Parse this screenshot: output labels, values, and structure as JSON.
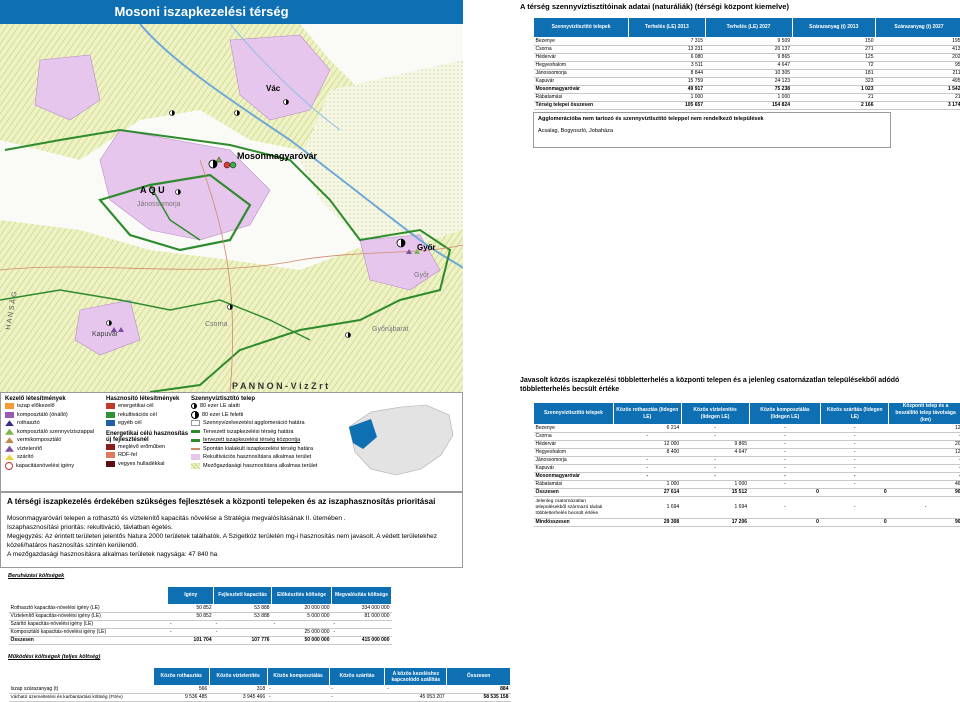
{
  "map": {
    "title": "Mosoni iszapkezelési térség",
    "places": {
      "vac": "Vác",
      "mosonmagyarovar": "Mosonmagyaróvár",
      "janossomorja": "Jánossomorja",
      "gyor": "Győr",
      "gyor2": "Győr",
      "kapuvar": "Kapuvár",
      "csorna": "Csorna",
      "gyorujbarat": "Győrújbarát",
      "hansag": "H A N S Á G",
      "pannon": "P A N N O N - V i z   Z r t",
      "aq": "A    Q    U"
    }
  },
  "legend": {
    "col1_title": "Kezelő létesítmények",
    "col1": [
      "iszap előkezelő",
      "komposztáló (önálló)",
      "rothasztó",
      "komposztáló szennyvíziszappal",
      "vermikomposztáló",
      "víztelenítő",
      "szárító",
      "kapacitásnövelési igény"
    ],
    "col2_title": "Hasznosító létesítmények",
    "col2": [
      "energetikai cél",
      "rekultivációs cél",
      "egyéb cél"
    ],
    "col2b_title": "Energetikai célú hasznosítás",
    "col2b_sub": "új fejlesztésnél",
    "col2b": [
      "meglévő erőműben",
      "RDF-fel",
      "vegyes hulladékkal"
    ],
    "col3_title": "Szennyvíztisztító telep",
    "col3": [
      "80 ezer LE alatti",
      "80 ezer LE feletti",
      "Szennyvízelvezetési agglomeráció határa",
      "Tervezett iszapkezelési térség határa",
      "tervezett iszapkezelési térség központja",
      "Spontán kialakult iszapkezelési térség határa",
      "Rekultivációs hasznosításra alkalmas terület",
      "Mezőgazdasági hasznosításra alkalmas terület"
    ]
  },
  "colors": {
    "brand_blue": "#0f6fb3",
    "green_boundary": "#2e8b2e",
    "pink_zone": "#e6c6ec",
    "hatch_green": "#d5e09a"
  },
  "text_box": {
    "heading": "A térségi iszapkezelés érdekében szükséges fejlesztések a központi telepeken és az iszaphasznosítás prioritásai",
    "lines": [
      "Mosonmagyaróvári telepen a rothasztó és víztelenítő kapacitás növelése a Stratégia megvalósításának II. ütemében .",
      "Iszaphasznosítási prioritás: rekultiváció, távlatban égetés.",
      "Megjegyzés: Az érintett területen jelentős Natura 2000 területek találhatók. A Szigetköz területén mg-i hasznosítás nem javasolt. A védett területekhez",
      "közeli/határos hasznosítás szintén kerülendő.",
      "A mezőgazdasági hasznosításra alkalmas területek nagysága: 47 840 ha"
    ]
  },
  "t1": {
    "title": "A térség szennyvíztisztítóinak adatai (naturáliák) (térségi központ kiemelve)",
    "headers": [
      "Szennyvíztisztító telepek",
      "Terhelés (LE) 2013",
      "Terhelés (LE) 2027",
      "Szárazanyag (t) 2013",
      "Szárazanyag (t) 2027"
    ],
    "rows": [
      [
        "Bezenye",
        "7 315",
        "9 509",
        "150",
        "195"
      ],
      [
        "Csorna",
        "13 231",
        "20 137",
        "271",
        "413"
      ],
      [
        "Hédervár",
        "6 080",
        "9 865",
        "125",
        "202"
      ],
      [
        "Hegyeshalom",
        "3 511",
        "4 647",
        "72",
        "95"
      ],
      [
        "Jánossomorja",
        "8 844",
        "10 305",
        "181",
        "211"
      ],
      [
        "Kapuvár",
        "15 759",
        "24 123",
        "323",
        "495"
      ],
      [
        "Mosonmagyaróvár",
        "49 917",
        "75 238",
        "1 023",
        "1 542"
      ],
      [
        "Rábatamási",
        "1 000",
        "1 000",
        "21",
        "21"
      ],
      [
        "Térség telepei összesen",
        "105 657",
        "154 824",
        "2 166",
        "3 174"
      ]
    ]
  },
  "agglo": {
    "title": "Agglomerációba nem tartozó és szennyvíztisztító teleppel nem rendelkező települések",
    "text": "Acsalag, Bogyoszló, Jobaháza"
  },
  "t2": {
    "title": "Javasolt közös iszapkezelési többletterhelés a központi telepen és a jelenleg csatornázatlan településekből adódó többletterhelés becsült értéke",
    "headers": [
      "Szennyvíztisztító telepek",
      "Közös rothasztás (lidegen LE)",
      "Közös víztelenítés (lidegen LE)",
      "Közös komposztálás (lidegen LE)",
      "Közös szárítás (lidegen LE)",
      "Központi telep és a beszállító telep távolsága (km)"
    ],
    "rows": [
      [
        "Bezenye",
        "6 214",
        "-",
        "-",
        "-",
        "12"
      ],
      [
        "Csorna",
        "-",
        "-",
        "-",
        "-",
        "-"
      ],
      [
        "Hédervár",
        "12 000",
        "9 865",
        "-",
        "-",
        "20"
      ],
      [
        "Hegyeshalom",
        "8 400",
        "4 647",
        "-",
        "-",
        "12"
      ],
      [
        "Jánossomorja",
        "-",
        "-",
        "-",
        "-",
        "-"
      ],
      [
        "Kapuvár",
        "-",
        "-",
        "-",
        "-",
        "-"
      ],
      [
        "Mosonmagyaróvár",
        "-",
        "-",
        "-",
        "-",
        "-"
      ],
      [
        "Rábatamási",
        "1 000",
        "1 000",
        "-",
        "-",
        "46"
      ],
      [
        "Összesen",
        "27 614",
        "15 512",
        "0",
        "0",
        "90"
      ]
    ],
    "extra_label": "Jelenleg csatornázatlan településekből származó távlati többletterhelés becsült értéke",
    "extra": [
      "1 694",
      "1 694",
      "-",
      "-",
      "-"
    ],
    "total": [
      "Mindösszesen",
      "29 308",
      "17 206",
      "0",
      "0",
      "90"
    ]
  },
  "t3": {
    "caption": "Beruházási költségek",
    "headers": [
      "",
      "Igény",
      "Fejlesztett kapacitás",
      "Előkészítés költsége",
      "Megvalósítás költsége"
    ],
    "rows": [
      [
        "Rothasztó kapacitás-növelési igény (LE)",
        "50 852",
        "53 888",
        "20 000 000",
        "334 000 000"
      ],
      [
        "Víztelenítő kapacitás-növelési igény (LE)",
        "50 852",
        "53 888",
        "5 000 000",
        "81 000 000"
      ],
      [
        "Szárító kapacitás-növelési igény (LE)",
        "-",
        "-",
        "-",
        "-"
      ],
      [
        "Komposztáló kapacitás-növelési igény (LE)",
        "-",
        "-",
        "25 000 000",
        "-"
      ],
      [
        "Összesen",
        "101 704",
        "107 776",
        "50 000 000",
        "415 000 000"
      ]
    ]
  },
  "t4": {
    "caption": "Működési költségek (teljes költség)",
    "headers": [
      "",
      "Közös rothasztás",
      "Közös víztelenítés",
      "Közös komposztálás",
      "Közös szárítás",
      "A közös kezeléshez kapcsolódó szállítás",
      "Összesen"
    ],
    "rows": [
      [
        "Iszap szárazanyag (t)",
        "566",
        "318",
        "-",
        "-",
        "-",
        "884"
      ],
      [
        "Várható üzemeltetési és karbantartási költség (Ft/év)",
        "9 536 485",
        "3 945 466",
        "-",
        "-",
        "45 053 207",
        "58 535 158"
      ]
    ]
  }
}
